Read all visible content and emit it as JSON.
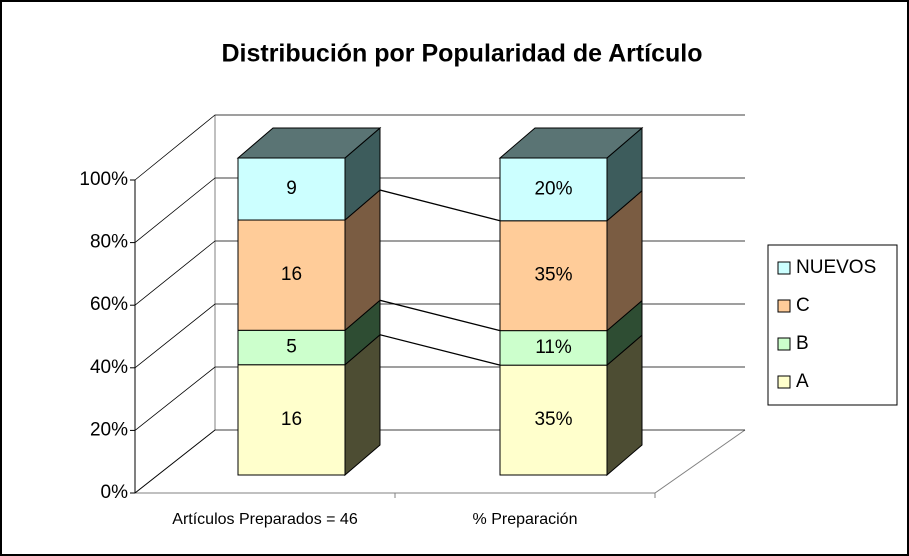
{
  "chart_data": {
    "type": "bar",
    "stacking": "percent",
    "title": "Distribución por Popularidad de Artículo",
    "categories": [
      "Artículos Preparados = 46",
      "% Preparación"
    ],
    "series": [
      {
        "name": "A",
        "color": "#ffffcc",
        "side_color": "#4d4d33",
        "values": [
          16,
          35
        ],
        "value_labels": [
          "16",
          "35%"
        ]
      },
      {
        "name": "B",
        "color": "#ccffcc",
        "side_color": "#2e4d33",
        "values": [
          5,
          11
        ],
        "value_labels": [
          "5",
          "11%"
        ]
      },
      {
        "name": "C",
        "color": "#ffcc99",
        "side_color": "#7a5c42",
        "values": [
          16,
          35
        ],
        "value_labels": [
          "16",
          "35%"
        ]
      },
      {
        "name": "NUEVOS",
        "color": "#ccffff",
        "side_color": "#3d5c5c",
        "values": [
          9,
          20
        ],
        "value_labels": [
          "9",
          "20%"
        ]
      }
    ],
    "ylim": [
      0,
      100
    ],
    "yticks": [
      {
        "value": 0,
        "label": "0%"
      },
      {
        "value": 20,
        "label": "20%"
      },
      {
        "value": 40,
        "label": "40%"
      },
      {
        "value": 60,
        "label": "60%"
      },
      {
        "value": 80,
        "label": "80%"
      },
      {
        "value": 100,
        "label": "100%"
      }
    ],
    "grid": true,
    "legend": "right"
  }
}
